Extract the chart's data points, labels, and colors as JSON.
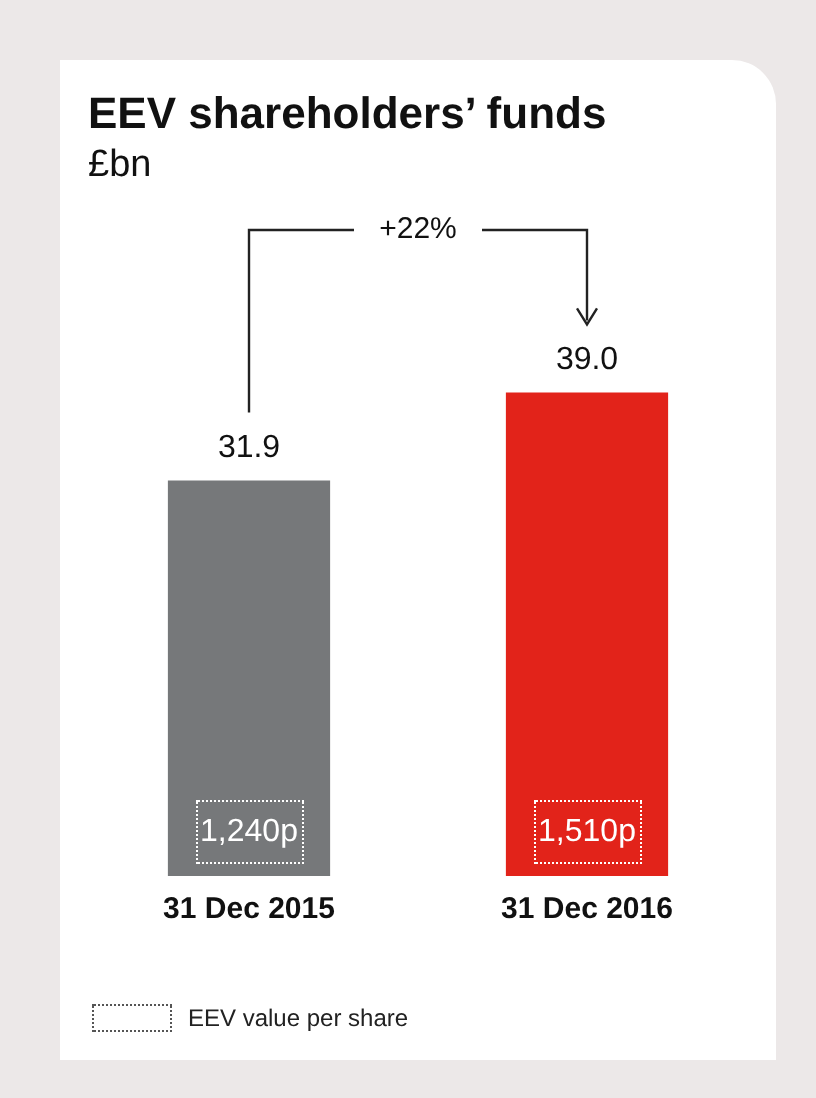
{
  "chart_data": {
    "type": "bar",
    "title": "EEV shareholders’ funds",
    "subtitle": "£bn",
    "categories": [
      "31 Dec 2015",
      "31 Dec 2016"
    ],
    "values": [
      31.9,
      39.0
    ],
    "colors": [
      "#76787a",
      "#e2231a"
    ],
    "value_labels": [
      "31.9",
      "39.0"
    ],
    "tick_labels": "x",
    "grid": false,
    "legend": false,
    "annotations": [
      "+22%",
      "1,240p",
      "1,510p",
      "EEV value per share"
    ]
  }
}
